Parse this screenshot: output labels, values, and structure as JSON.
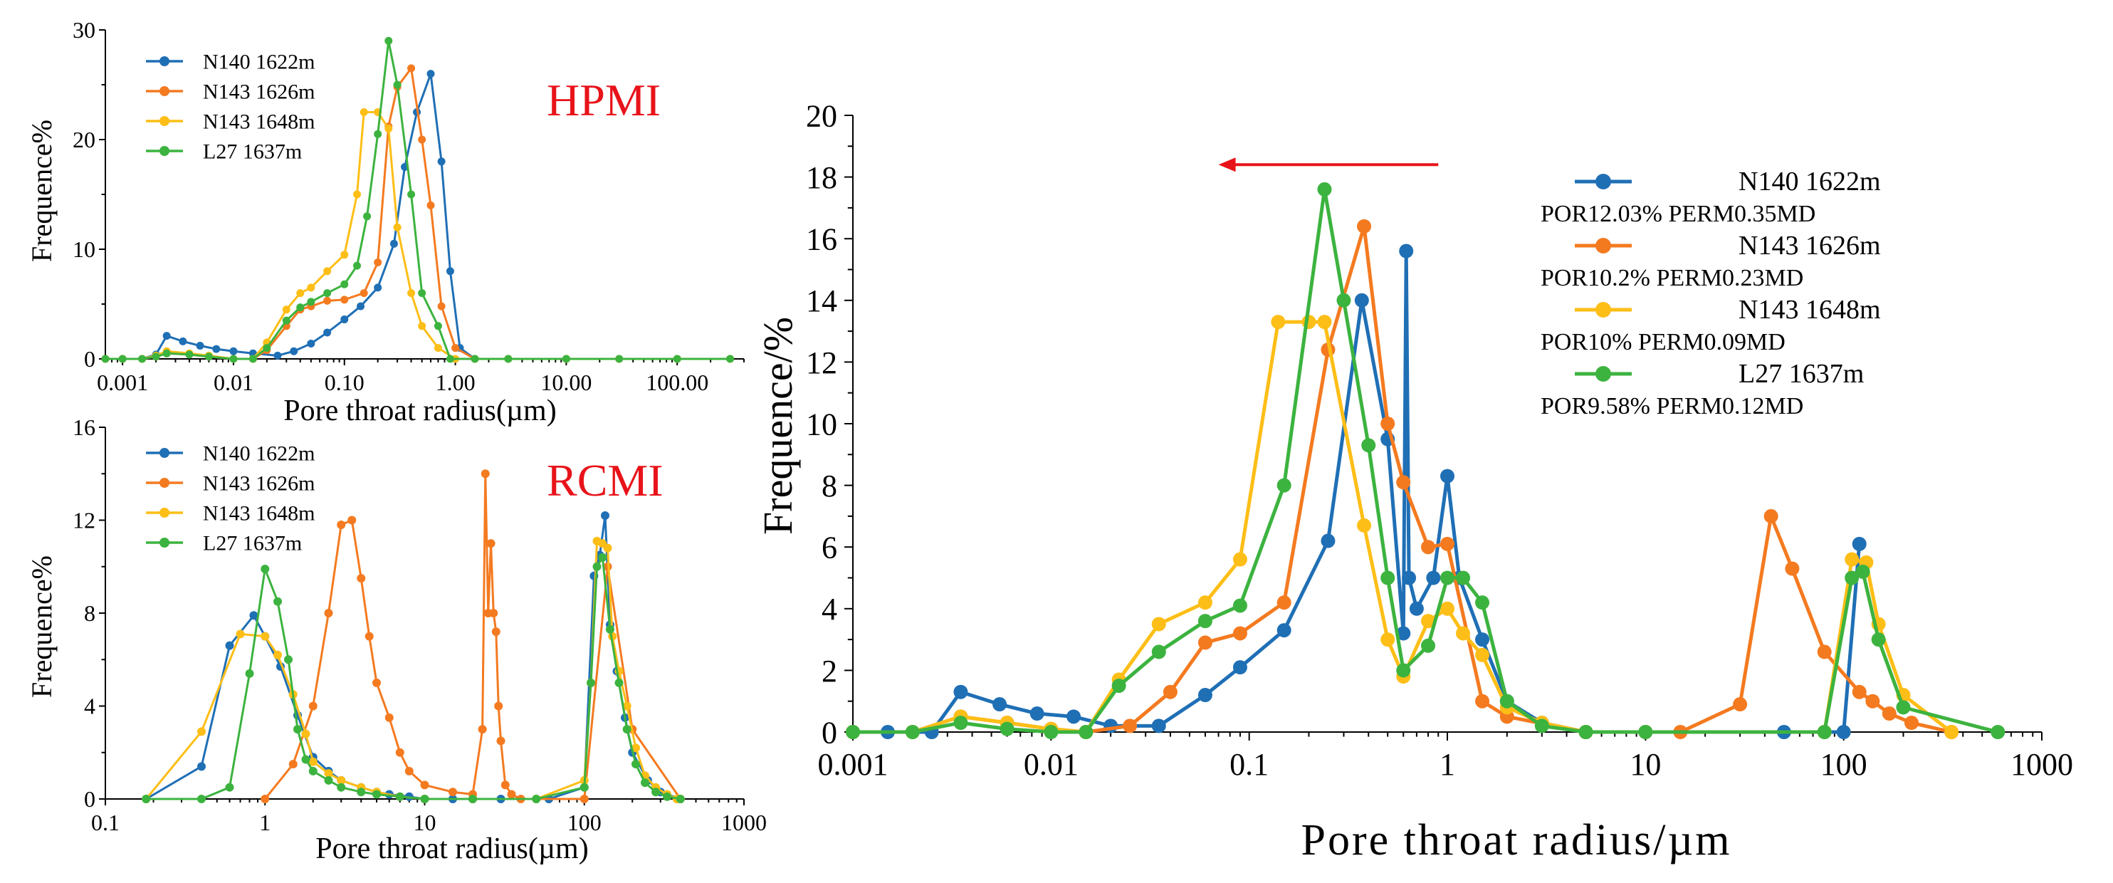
{
  "colors": {
    "N140": "#1f6fb5",
    "N143_1626": "#f47a20",
    "N143_1648": "#fdbe17",
    "L27": "#3cb33f",
    "arrow": "#e8131a"
  },
  "chart_data": [
    {
      "id": "hpmi",
      "type": "line",
      "title": "HPMI",
      "xlabel": "Pore throat radius(µm)",
      "ylabel": "Frequence%",
      "xscale": "log",
      "xlim": [
        0.0007,
        400
      ],
      "ylim": [
        0,
        30
      ],
      "xtick_values": [
        0.001,
        0.01,
        0.1,
        1,
        10,
        100
      ],
      "xtick_labels": [
        "0.001",
        "0.01",
        "0.10",
        "1.00",
        "10.00",
        "100.00"
      ],
      "ytick_values": [
        0,
        10,
        20,
        30
      ],
      "ytick_labels": [
        "0",
        "10",
        "20",
        "30"
      ],
      "legend_position": "top-left",
      "series": [
        {
          "name": "N140 1622m",
          "color": "#1f6fb5",
          "x": [
            0.0007,
            0.001,
            0.0015,
            0.002,
            0.0025,
            0.0035,
            0.005,
            0.007,
            0.01,
            0.015,
            0.025,
            0.035,
            0.05,
            0.07,
            0.1,
            0.14,
            0.2,
            0.28,
            0.35,
            0.45,
            0.6,
            0.75,
            0.9,
            1.1,
            1.5,
            3,
            10,
            30,
            100,
            300
          ],
          "y": [
            0,
            0,
            0,
            0.4,
            2.1,
            1.6,
            1.2,
            0.9,
            0.7,
            0.5,
            0.3,
            0.7,
            1.4,
            2.4,
            3.6,
            4.8,
            6.5,
            10.5,
            17.5,
            22.5,
            26,
            18,
            8,
            1,
            0,
            0,
            0,
            0,
            0,
            0
          ]
        },
        {
          "name": "N143 1626m",
          "color": "#f47a20",
          "x": [
            0.0007,
            0.001,
            0.0015,
            0.002,
            0.0025,
            0.004,
            0.006,
            0.01,
            0.015,
            0.02,
            0.03,
            0.04,
            0.05,
            0.07,
            0.1,
            0.15,
            0.2,
            0.25,
            0.3,
            0.4,
            0.5,
            0.6,
            0.75,
            1,
            1.5,
            3,
            10,
            30,
            100,
            300
          ],
          "y": [
            0,
            0,
            0,
            0.2,
            0.5,
            0.4,
            0.2,
            0,
            0,
            0.8,
            3,
            4.5,
            4.8,
            5.3,
            5.4,
            6,
            8.8,
            21.2,
            24.8,
            26.5,
            20,
            14,
            4.8,
            1,
            0,
            0,
            0,
            0,
            0,
            0
          ]
        },
        {
          "name": "N143 1648m",
          "color": "#fdbe17",
          "x": [
            0.0007,
            0.001,
            0.0015,
            0.002,
            0.0025,
            0.004,
            0.006,
            0.01,
            0.015,
            0.02,
            0.03,
            0.04,
            0.05,
            0.07,
            0.1,
            0.13,
            0.15,
            0.2,
            0.25,
            0.3,
            0.4,
            0.5,
            0.7,
            1,
            1.5,
            3,
            10,
            30,
            100,
            300
          ],
          "y": [
            0,
            0,
            0,
            0.3,
            0.7,
            0.5,
            0.3,
            0,
            0,
            1.5,
            4.5,
            6,
            6.5,
            8,
            9.5,
            15,
            22.5,
            22.5,
            21,
            12,
            6,
            3,
            1,
            0,
            0,
            0,
            0,
            0,
            0,
            0
          ]
        },
        {
          "name": "L27 1637m",
          "color": "#3cb33f",
          "x": [
            0.0007,
            0.001,
            0.0015,
            0.002,
            0.0025,
            0.004,
            0.006,
            0.01,
            0.015,
            0.02,
            0.03,
            0.04,
            0.05,
            0.07,
            0.1,
            0.13,
            0.16,
            0.2,
            0.25,
            0.3,
            0.4,
            0.5,
            0.7,
            0.9,
            1.5,
            3,
            10,
            30,
            100,
            300
          ],
          "y": [
            0,
            0,
            0,
            0.2,
            0.5,
            0.4,
            0.2,
            0,
            0,
            1,
            3.5,
            4.7,
            5.2,
            6,
            6.8,
            8.5,
            13,
            20.5,
            29,
            25,
            15,
            6,
            3,
            0,
            0,
            0,
            0,
            0,
            0,
            0
          ]
        }
      ]
    },
    {
      "id": "rcmi",
      "type": "line",
      "title": "RCMI",
      "xlabel": "Pore throat radius(µm)",
      "ylabel": "Frequence%",
      "xscale": "log",
      "xlim": [
        0.1,
        1000
      ],
      "ylim": [
        0,
        16
      ],
      "xtick_values": [
        0.1,
        1,
        10,
        100,
        1000
      ],
      "xtick_labels": [
        "0.1",
        "1",
        "10",
        "100",
        "1000"
      ],
      "ytick_values": [
        0,
        4,
        8,
        12,
        16
      ],
      "ytick_labels": [
        "0",
        "4",
        "8",
        "12",
        "16"
      ],
      "legend_position": "top-left",
      "series": [
        {
          "name": "N140 1622m",
          "color": "#1f6fb5",
          "x": [
            0.18,
            0.4,
            0.6,
            0.85,
            1,
            1.25,
            1.6,
            2,
            2.5,
            3,
            4,
            5,
            6,
            8,
            10,
            15,
            20,
            30,
            60,
            100,
            115,
            125,
            135,
            145,
            160,
            180,
            200,
            250,
            300,
            400
          ],
          "y": [
            0,
            1.4,
            6.6,
            7.9,
            7,
            5.7,
            3.6,
            1.8,
            1.2,
            0.8,
            0.5,
            0.3,
            0.2,
            0.1,
            0,
            0,
            0,
            0,
            0,
            0.5,
            9.6,
            10.5,
            12.2,
            7.5,
            5.5,
            3.5,
            2,
            0.8,
            0.3,
            0
          ]
        },
        {
          "name": "N143 1626m",
          "color": "#f47a20",
          "x": [
            1,
            1.5,
            2,
            2.5,
            3,
            3.5,
            4,
            4.5,
            5,
            6,
            7,
            8,
            10,
            15,
            20,
            23,
            24,
            25,
            26,
            27,
            28,
            29,
            30,
            32,
            35,
            40,
            100,
            140,
            200,
            400
          ],
          "y": [
            0,
            1.5,
            4,
            8,
            11.8,
            12,
            9.5,
            7,
            5,
            3.5,
            2,
            1.2,
            0.6,
            0.3,
            0.2,
            3,
            14,
            8,
            11,
            8,
            7.2,
            4,
            2.5,
            0.6,
            0.2,
            0,
            0,
            10,
            3,
            0
          ]
        },
        {
          "name": "N143 1648m",
          "color": "#fdbe17",
          "x": [
            0.18,
            0.4,
            0.7,
            1,
            1.2,
            1.5,
            1.8,
            2,
            2.5,
            3,
            4,
            5,
            7,
            10,
            20,
            50,
            100,
            110,
            120,
            130,
            140,
            150,
            165,
            185,
            210,
            240,
            280,
            330,
            380,
            400
          ],
          "y": [
            0,
            2.9,
            7.1,
            7,
            6.2,
            4.5,
            2.8,
            1.6,
            1.1,
            0.8,
            0.5,
            0.3,
            0.1,
            0,
            0,
            0,
            0.8,
            5,
            11.1,
            11,
            10.8,
            7,
            5.5,
            4,
            2.2,
            1,
            0.5,
            0.2,
            0,
            0
          ]
        },
        {
          "name": "L27 1637m",
          "color": "#3cb33f",
          "x": [
            0.18,
            0.4,
            0.6,
            0.8,
            1,
            1.2,
            1.4,
            1.6,
            1.8,
            2,
            2.5,
            3,
            4,
            5,
            7,
            10,
            20,
            50,
            100,
            110,
            120,
            130,
            145,
            165,
            185,
            210,
            240,
            280,
            330,
            400
          ],
          "y": [
            0,
            0,
            0.5,
            5.4,
            9.9,
            8.5,
            6,
            3,
            1.7,
            1.2,
            0.8,
            0.5,
            0.3,
            0.2,
            0.1,
            0,
            0,
            0,
            0.5,
            5,
            10,
            10.4,
            7.3,
            5,
            3,
            1.5,
            0.7,
            0.3,
            0.1,
            0
          ]
        }
      ]
    },
    {
      "id": "main",
      "type": "line",
      "title": "",
      "xlabel": "Pore throat radius/µm",
      "ylabel": "Frequence/%",
      "xscale": "log",
      "xlim": [
        0.001,
        1000
      ],
      "ylim": [
        0,
        20
      ],
      "xtick_values": [
        0.001,
        0.01,
        0.1,
        1,
        10,
        100,
        1000
      ],
      "xtick_labels": [
        "0.001",
        "0.01",
        "0.1",
        "1",
        "10",
        "100",
        "1000"
      ],
      "ytick_values": [
        0,
        2,
        4,
        6,
        8,
        10,
        12,
        14,
        16,
        18,
        20
      ],
      "ytick_labels": [
        "0",
        "2",
        "4",
        "6",
        "8",
        "10",
        "12",
        "14",
        "16",
        "18",
        "20"
      ],
      "legend_position": "top-right",
      "annotation": {
        "type": "arrow",
        "direction": "left",
        "x_from": 0.9,
        "x_to": 0.07,
        "y": 18.4
      },
      "series": [
        {
          "name": "N140 1622m",
          "sublabel": "POR12.03% PERM0.35MD",
          "color": "#1f6fb5",
          "x": [
            0.001,
            0.0015,
            0.0025,
            0.0035,
            0.0055,
            0.0085,
            0.013,
            0.02,
            0.035,
            0.06,
            0.09,
            0.15,
            0.25,
            0.37,
            0.5,
            0.6,
            0.62,
            0.64,
            0.7,
            0.85,
            1,
            1.15,
            1.5,
            2,
            3,
            5,
            10,
            50,
            100,
            120
          ],
          "y": [
            0,
            0,
            0,
            1.3,
            0.9,
            0.6,
            0.5,
            0.2,
            0.2,
            1.2,
            2.1,
            3.3,
            6.2,
            14,
            9.5,
            3.2,
            15.6,
            5,
            4,
            5,
            8.3,
            5,
            3,
            1,
            0.3,
            0,
            0,
            0,
            0,
            6.1
          ]
        },
        {
          "name": "N143 1626m",
          "sublabel": "POR10.2%  PERM0.23MD",
          "color": "#f47a20",
          "x": [
            0.001,
            0.002,
            0.0035,
            0.006,
            0.01,
            0.015,
            0.025,
            0.04,
            0.06,
            0.09,
            0.15,
            0.25,
            0.38,
            0.5,
            0.6,
            0.8,
            1,
            1.5,
            2,
            5,
            15,
            30,
            43,
            55,
            80,
            120,
            140,
            170,
            220,
            350
          ],
          "y": [
            0,
            0,
            0.5,
            0.3,
            0.1,
            0,
            0.2,
            1.3,
            2.9,
            3.2,
            4.2,
            12.4,
            16.4,
            10,
            8.1,
            6,
            6.1,
            1,
            0.5,
            0,
            0,
            0.9,
            7,
            5.3,
            2.6,
            1.3,
            1,
            0.6,
            0.3,
            0
          ]
        },
        {
          "name": "N143 1648m",
          "sublabel": "POR10%     PERM0.09MD",
          "color": "#fdbe17",
          "x": [
            0.001,
            0.002,
            0.0035,
            0.006,
            0.01,
            0.015,
            0.022,
            0.035,
            0.06,
            0.09,
            0.14,
            0.2,
            0.24,
            0.38,
            0.5,
            0.6,
            0.8,
            1,
            1.2,
            1.5,
            2,
            3,
            5,
            10,
            80,
            110,
            130,
            150,
            200,
            350
          ],
          "y": [
            0,
            0,
            0.5,
            0.3,
            0.1,
            0,
            1.7,
            3.5,
            4.2,
            5.6,
            13.3,
            13.3,
            13.3,
            6.7,
            3,
            1.8,
            3.6,
            4,
            3.2,
            2.5,
            0.8,
            0.3,
            0,
            0,
            0,
            5.6,
            5.5,
            3.5,
            1.2,
            0
          ]
        },
        {
          "name": "L27 1637m",
          "sublabel": "POR9.58%  PERM0.12MD",
          "color": "#3cb33f",
          "x": [
            0.001,
            0.002,
            0.0035,
            0.006,
            0.01,
            0.015,
            0.022,
            0.035,
            0.06,
            0.09,
            0.15,
            0.24,
            0.3,
            0.4,
            0.5,
            0.6,
            0.8,
            1,
            1.2,
            1.5,
            2,
            3,
            5,
            10,
            80,
            110,
            125,
            150,
            200,
            600
          ],
          "y": [
            0,
            0,
            0.3,
            0.1,
            0,
            0,
            1.5,
            2.6,
            3.6,
            4.1,
            8,
            17.6,
            14,
            9.3,
            5,
            2,
            2.8,
            5,
            5,
            4.2,
            1,
            0.2,
            0,
            0,
            0,
            5,
            5.2,
            3,
            0.8,
            0
          ]
        }
      ]
    }
  ]
}
